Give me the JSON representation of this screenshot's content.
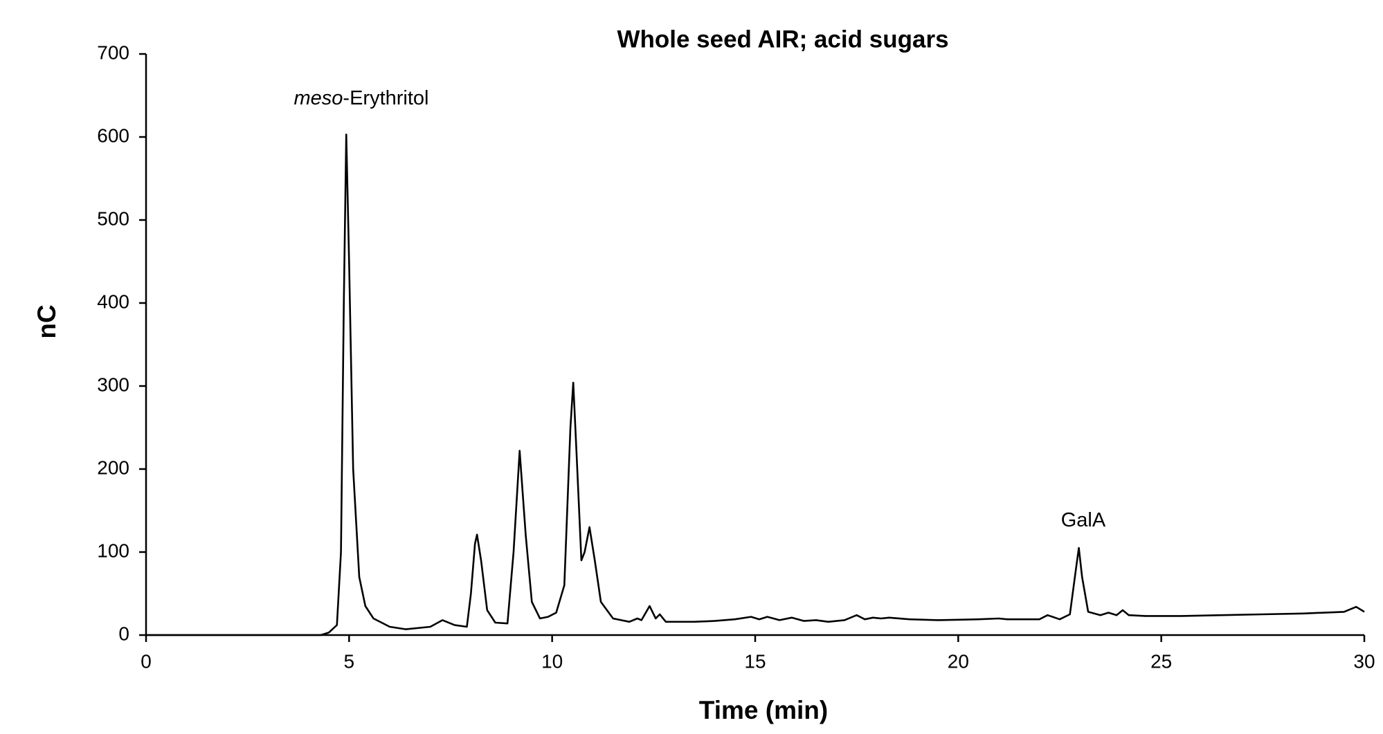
{
  "chart_data": {
    "type": "line",
    "title": "Whole seed AIR; acid sugars",
    "x_label": "Time (min)",
    "y_label": "nC",
    "annotations": [
      {
        "parts": [
          "meso",
          "-Erythritol"
        ]
      },
      {
        "parts": [
          "GalA"
        ]
      }
    ],
    "color": "#000000",
    "x": [
      0,
      4.3,
      4.5,
      4.7,
      4.8,
      4.87,
      4.93,
      5.0,
      5.1,
      5.25,
      5.4,
      5.6,
      6.0,
      6.4,
      7.0,
      7.3,
      7.6,
      7.9,
      8.0,
      8.1,
      8.15,
      8.25,
      8.4,
      8.6,
      8.9,
      9.05,
      9.2,
      9.35,
      9.5,
      9.7,
      9.9,
      10.1,
      10.3,
      10.45,
      10.52,
      10.6,
      10.72,
      10.8,
      10.92,
      11.05,
      11.2,
      11.5,
      11.9,
      12.1,
      12.2,
      12.4,
      12.55,
      12.65,
      12.8,
      13.5,
      14.0,
      14.5,
      14.9,
      15.1,
      15.3,
      15.6,
      15.9,
      16.2,
      16.5,
      16.8,
      17.2,
      17.5,
      17.7,
      17.9,
      18.1,
      18.3,
      18.8,
      19.5,
      20.5,
      21.0,
      21.2,
      22.0,
      22.2,
      22.5,
      22.75,
      22.9,
      22.97,
      23.05,
      23.2,
      23.5,
      23.7,
      23.9,
      24.05,
      24.2,
      24.6,
      25.5,
      26.5,
      27.5,
      28.5,
      29.5,
      29.8,
      30
    ],
    "values": [
      0,
      0,
      3,
      12,
      100,
      400,
      603,
      450,
      200,
      70,
      35,
      20,
      10,
      7,
      10,
      18,
      12,
      10,
      50,
      110,
      121,
      90,
      30,
      15,
      14,
      100,
      222,
      120,
      40,
      20,
      22,
      27,
      60,
      250,
      304,
      220,
      90,
      100,
      130,
      90,
      40,
      20,
      16,
      20,
      18,
      35,
      20,
      25,
      16,
      16,
      17,
      19,
      22,
      19,
      22,
      18,
      21,
      17,
      18,
      16,
      18,
      24,
      19,
      21,
      20,
      21,
      19,
      18,
      19,
      20,
      19,
      19,
      24,
      19,
      25,
      80,
      105,
      70,
      28,
      24,
      27,
      24,
      30,
      24,
      23,
      23,
      24,
      25,
      26,
      28,
      34,
      28
    ],
    "xlim": [
      0,
      30
    ],
    "xticks": [
      0,
      5,
      10,
      15,
      20,
      25,
      30
    ],
    "ylim": [
      0,
      700
    ],
    "yticks": [
      0,
      100,
      200,
      300,
      400,
      500,
      600,
      700
    ],
    "grid": false
  }
}
